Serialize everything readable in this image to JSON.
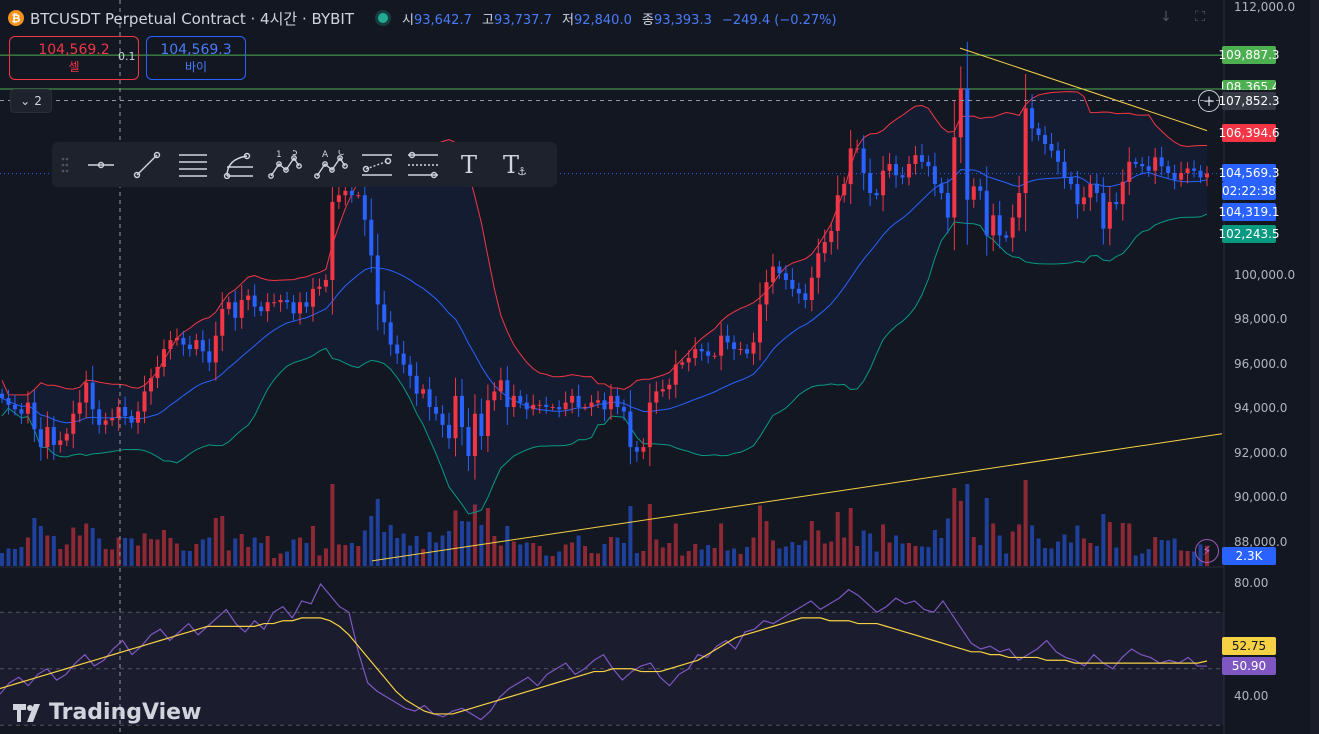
{
  "header": {
    "coin_symbol": "₿",
    "title": "BTCUSDT Perpetual Contract · 4시간 · BYBIT",
    "open_label": "시",
    "open": "93,642.7",
    "high_label": "고",
    "high": "93,737.7",
    "low_label": "저",
    "low": "92,840.0",
    "close_label": "종",
    "close": "93,393.3",
    "change": "−249.4 (−0.27%)"
  },
  "trade": {
    "sell_price": "104,569.2",
    "sell_label": "셀",
    "buy_price": "104,569.3",
    "buy_label": "바이",
    "quantity": "0.1"
  },
  "collapse_count": "2",
  "toolbar": {
    "tools": [
      "grip-icon",
      "ray-icon",
      "trend-line-icon",
      "parallel-channel-icon",
      "fib-icon",
      "xabcd-pattern-icon",
      "abcd-pattern-icon",
      "date-range-icon",
      "price-range-icon",
      "text-icon",
      "anchored-text-icon"
    ],
    "ab_labels": [
      "1",
      "5",
      "A",
      "C"
    ],
    "text_glyph": "T"
  },
  "tags": {
    "level_high": "109,887.3",
    "level_mid": "108,365.4",
    "crosshair": "107,852.3",
    "bb_upper": "106,394.6",
    "last_price": "104,569.3",
    "countdown": "02:22:38",
    "bb_basis": "104,319.1",
    "bb_lower": "102,243.5",
    "volume": "2.3K",
    "rsi_ma": "52.75",
    "rsi": "50.90"
  },
  "colors": {
    "up": "#f23645",
    "down": "#2962ff",
    "bb_upper": "#f23645",
    "bb_basis": "#2962ff",
    "bb_lower": "#089981",
    "trend": "#f7d145",
    "level": "#4caf50",
    "rsi": "#7e57c2",
    "rsi_ma": "#f7d145"
  },
  "logo": "TradingView",
  "chart_data": [
    {
      "type": "candlestick",
      "title": "BTCUSDT Perpetual Contract · 4시간 · BYBIT",
      "y_ticks": [
        112000,
        100000,
        98000,
        96000,
        94000,
        92000,
        90000,
        88000
      ],
      "y_tick_labels": [
        "112,000.0",
        "100,000.0",
        "98,000.0",
        "96,000.0",
        "94,000.0",
        "92,000.0",
        "90,000.0",
        "88,000.0"
      ],
      "ylim": [
        87000,
        112300
      ],
      "horizontal_levels": [
        109887.3,
        108365.4
      ],
      "crosshair_price": 107852.3,
      "last_price": 104569.3,
      "closes": [
        94500,
        94200,
        94000,
        93800,
        94300,
        93100,
        92300,
        93200,
        92400,
        92600,
        92900,
        93800,
        94300,
        95200,
        94000,
        93300,
        93500,
        93600,
        94100,
        93700,
        93400,
        93900,
        94800,
        95400,
        95900,
        96700,
        97100,
        97200,
        96900,
        96700,
        97100,
        96600,
        96100,
        97300,
        98500,
        98800,
        98100,
        98900,
        99100,
        98600,
        98400,
        98800,
        98800,
        98900,
        98800,
        98300,
        98800,
        98600,
        99400,
        99500,
        99800,
        103300,
        103600,
        103800,
        103600,
        103600,
        102500,
        100900,
        98700,
        97900,
        96900,
        96500,
        96000,
        95500,
        94700,
        94900,
        94100,
        93800,
        93300,
        92700,
        94600,
        93200,
        91900,
        93800,
        92800,
        94400,
        94800,
        95300,
        94100,
        94600,
        94300,
        94000,
        94200,
        94200,
        94100,
        94100,
        94000,
        94300,
        94600,
        94100,
        94100,
        94300,
        94400,
        94000,
        94600,
        94100,
        93900,
        92300,
        92100,
        92300,
        94300,
        94800,
        94900,
        95100,
        96000,
        96100,
        96300,
        96700,
        96600,
        96400,
        96400,
        97300,
        97000,
        96700,
        96700,
        96500,
        97000,
        98700,
        99700,
        100400,
        100100,
        99800,
        99400,
        99200,
        98900,
        99900,
        101000,
        101500,
        102000,
        103600,
        104100,
        105700,
        105700,
        104600,
        103700,
        103600,
        104700,
        105000,
        104500,
        104400,
        105000,
        105400,
        105100,
        104900,
        104100,
        103700,
        102600,
        106200,
        108400,
        103400,
        104000,
        103800,
        101800,
        102700,
        101800,
        101700,
        102600,
        103700,
        107500,
        106600,
        106300,
        105900,
        105600,
        105100,
        104400,
        104100,
        103200,
        103500,
        104100,
        103700,
        102100,
        103300,
        103200,
        104200,
        105100,
        105000,
        104900,
        104700,
        105300,
        104900,
        104600,
        104300,
        104600,
        104800,
        104700,
        104400,
        104569.3
      ],
      "volume_axis_label": "2.3K",
      "indicators": {
        "bollinger_bands": {
          "upper": 106394.6,
          "basis": 104319.1,
          "lower": 102243.5
        },
        "trend_lines": [
          {
            "from_price": 110200,
            "to_price": 106500
          },
          {
            "from_price": 87200,
            "to_price": 92900
          }
        ]
      }
    },
    {
      "type": "line",
      "y_ticks": [
        80,
        40
      ],
      "y_tick_labels": [
        "80.00",
        "40.00"
      ],
      "ylim": [
        28,
        85
      ],
      "series": [
        {
          "values": [
            41,
            45,
            47,
            44,
            48,
            50,
            46,
            48,
            52,
            55,
            51,
            53,
            57,
            60,
            55,
            58,
            62,
            64,
            60,
            63,
            66,
            62,
            65,
            68,
            71,
            66,
            63,
            67,
            64,
            70,
            72,
            68,
            74,
            73,
            80,
            76,
            72,
            70,
            56,
            45,
            42,
            40,
            38,
            36,
            35,
            37,
            34,
            33,
            35,
            36,
            34,
            32,
            35,
            40,
            43,
            45,
            47,
            44,
            48,
            50,
            52,
            48,
            50,
            53,
            55,
            50,
            46,
            49,
            51,
            52,
            47,
            44,
            48,
            50,
            55,
            54,
            58,
            60,
            57,
            63,
            64,
            67,
            66,
            68,
            70,
            72,
            74,
            71,
            73,
            75,
            78,
            76,
            73,
            70,
            72,
            75,
            73,
            74,
            71,
            70,
            74,
            69,
            64,
            59,
            57,
            58,
            56,
            57,
            53,
            55,
            57,
            60,
            56,
            54,
            53,
            51,
            55,
            52,
            50,
            54,
            57,
            55,
            54,
            52,
            53,
            52,
            54,
            51,
            50.9
          ]
        },
        {
          "values": [
            43,
            44,
            45,
            46,
            47,
            48,
            49,
            50,
            51,
            52,
            53,
            54,
            55,
            56,
            57,
            58,
            59,
            60,
            61,
            62,
            63,
            64,
            65,
            65,
            65,
            65,
            65,
            65,
            66,
            66,
            67,
            67,
            68,
            68,
            68,
            67,
            65,
            62,
            58,
            54,
            50,
            46,
            42,
            39,
            37,
            35,
            34,
            34,
            34,
            35,
            36,
            37,
            38,
            39,
            40,
            41,
            42,
            43,
            44,
            45,
            46,
            47,
            48,
            49,
            49,
            50,
            50,
            50,
            49,
            49,
            49,
            50,
            51,
            52,
            53,
            55,
            57,
            59,
            61,
            62,
            63,
            64,
            65,
            66,
            67,
            68,
            68,
            68,
            67,
            67,
            67,
            66,
            66,
            66,
            65,
            64,
            63,
            62,
            61,
            60,
            59,
            58,
            57,
            56,
            56,
            55,
            55,
            54,
            54,
            54,
            54,
            53,
            53,
            53,
            52,
            52,
            52,
            52,
            52,
            52,
            52,
            52,
            52,
            52,
            52,
            52,
            52,
            52,
            52.75
          ]
        }
      ],
      "levels": [
        70,
        50,
        30
      ]
    }
  ]
}
